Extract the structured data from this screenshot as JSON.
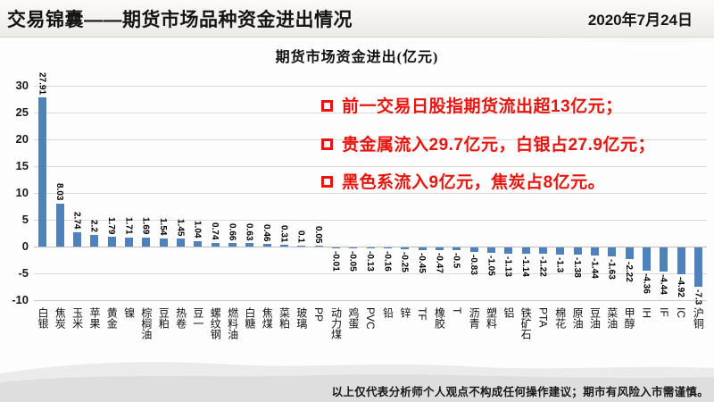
{
  "header": {
    "title": "交易锦囊——期货市场品种资金进出情况",
    "date": "2020年7月24日"
  },
  "chart_data": {
    "type": "bar",
    "title": "期货市场资金进出(亿元)",
    "categories": [
      "白银",
      "焦炭",
      "玉米",
      "苹果",
      "黄金",
      "镍",
      "棕榈油",
      "豆粕",
      "热卷",
      "豆一",
      "螺纹钢",
      "燃料油",
      "白糖",
      "焦煤",
      "菜粕",
      "玻璃",
      "PP",
      "动力煤",
      "鸡蛋",
      "PVC",
      "铅",
      "锌",
      "TF",
      "橡胶",
      "T",
      "沥青",
      "塑料",
      "铝",
      "铁矿石",
      "PTA",
      "棉花",
      "原油",
      "豆油",
      "菜油",
      "甲醇",
      "IH",
      "IF",
      "IC",
      "沪铜"
    ],
    "values": [
      27.91,
      8.03,
      2.74,
      2.2,
      1.79,
      1.71,
      1.69,
      1.54,
      1.45,
      1.04,
      0.74,
      0.66,
      0.63,
      0.46,
      0.31,
      0.1,
      0.05,
      -0.01,
      -0.05,
      -0.13,
      -0.16,
      -0.25,
      -0.45,
      -0.47,
      -0.5,
      -0.83,
      -1.05,
      -1.13,
      -1.14,
      -1.22,
      -1.3,
      -1.38,
      -1.44,
      -1.63,
      -2.22,
      -4.36,
      -4.44,
      -4.92,
      -7.3
    ],
    "value_labels": [
      "27.91",
      "8.03",
      "2.74",
      "2.2",
      "1.79",
      "1.71",
      "1.69",
      "1.54",
      "1.45",
      "1.04",
      "0.74",
      "0.66",
      "0.63",
      "0.46",
      "0.31",
      "0.1",
      "0.05",
      "-0.01",
      "-0.05",
      "-0.13",
      "-0.16",
      "-0.25",
      "-0.45",
      "-0.47",
      "-0.5",
      "-0.83",
      "-1.05",
      "-1.13",
      "-1.14",
      "-1.22",
      "-1.3",
      "-1.38",
      "-1.44",
      "-1.63",
      "-2.22",
      "-4.36",
      "-4.44",
      "-4.92",
      "-7.3"
    ],
    "xlabel": "",
    "ylabel": "",
    "ylim": [
      -10,
      30
    ],
    "yticks": [
      30,
      25,
      20,
      15,
      10,
      5,
      0,
      -5,
      -10
    ],
    "grid": true,
    "legend_position": "none",
    "bar_color": "#4f81bd",
    "data_label_rotation": "vertical"
  },
  "annotations": {
    "bullet_color": "#e8150f",
    "items": [
      {
        "text": "前一交易日股指期货流出超13亿元；"
      },
      {
        "text": "贵金属流入29.7亿元，白银占27.9亿元；"
      },
      {
        "text": "黑色系流入9亿元，焦炭占8亿元。"
      }
    ]
  },
  "footer": {
    "disclaimer": "以上仅代表分析师个人观点不构成任何操作建议；期市有风险入市需谨慎。"
  }
}
